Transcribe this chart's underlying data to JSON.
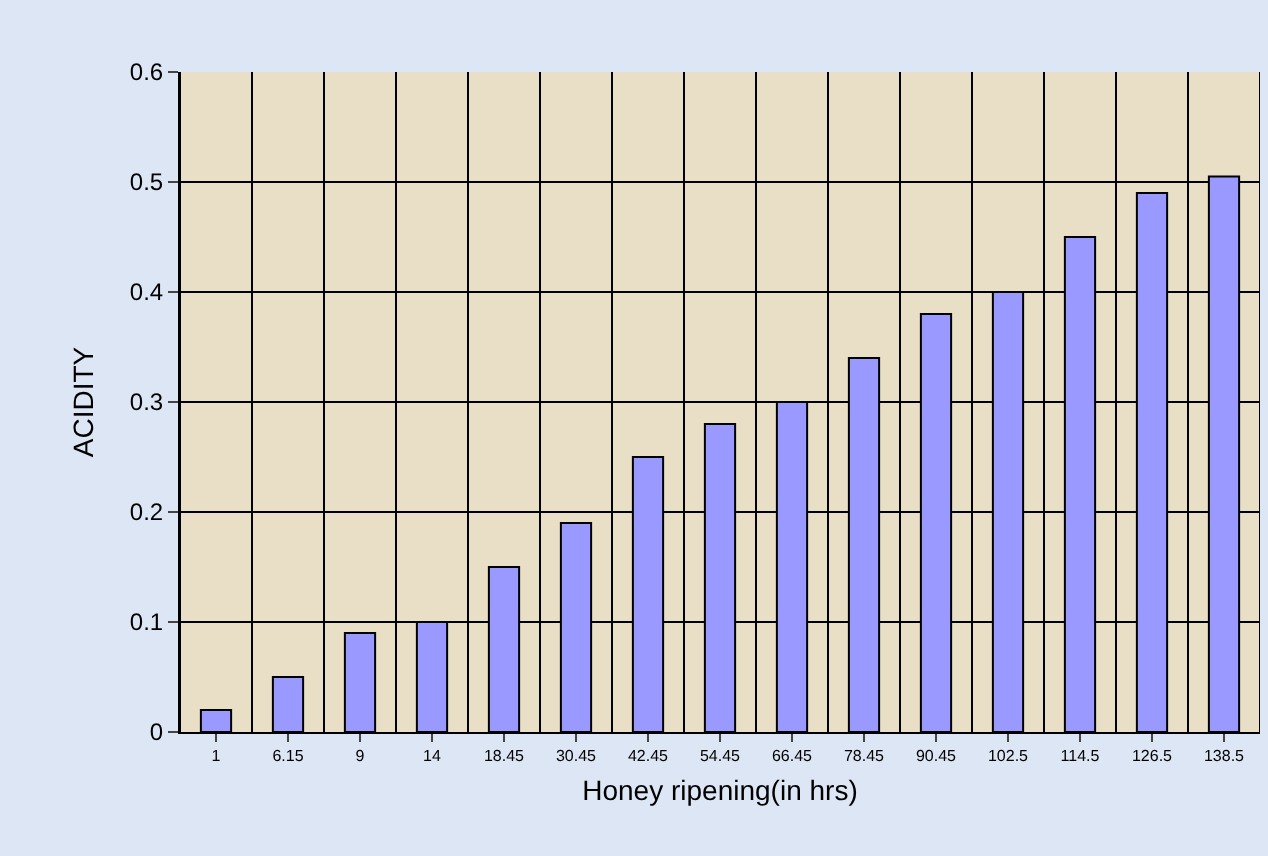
{
  "chart_data": {
    "type": "bar",
    "xlabel": "Honey ripening(in hrs)",
    "ylabel": "ACIDITY",
    "categories": [
      "1",
      "6.15",
      "9",
      "14",
      "18.45",
      "30.45",
      "42.45",
      "54.45",
      "66.45",
      "78.45",
      "90.45",
      "102.5",
      "114.5",
      "126.5",
      "138.5"
    ],
    "values": [
      0.02,
      0.05,
      0.09,
      0.1,
      0.15,
      0.19,
      0.25,
      0.28,
      0.3,
      0.34,
      0.38,
      0.4,
      0.45,
      0.49,
      0.505
    ],
    "color": "#9999ff",
    "ylim": [
      0,
      0.6
    ],
    "yticks": [
      {
        "value": 0,
        "label": "0"
      },
      0.1,
      0.2,
      0.3,
      0.4,
      0.5,
      0.6
    ],
    "grid": true
  }
}
